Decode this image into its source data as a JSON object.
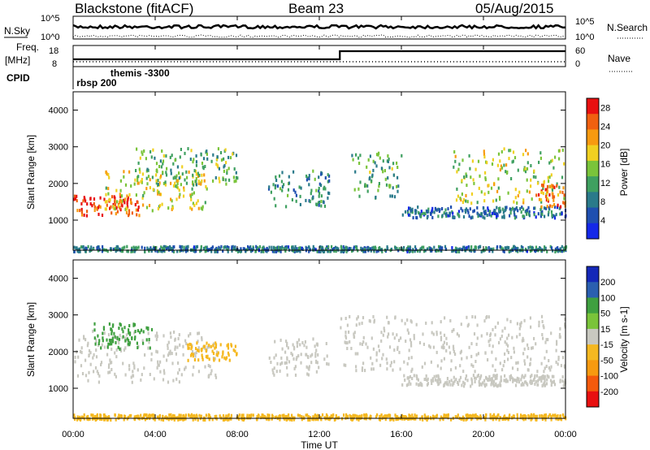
{
  "header": {
    "radar": "Blackstone (fitACF)",
    "beam": "Beam 23",
    "date": "05/Aug/2015"
  },
  "top_panels": {
    "nsky_label": "N.Sky",
    "nsearch_label": "N.Search",
    "freq_label": "Freq.",
    "freq_unit": "[MHz]",
    "nave_label": "Nave",
    "cpid_label": "CPID",
    "left_nsky_ticks": [
      "10^5",
      "10^0"
    ],
    "right_nsky_ticks": [
      "10^5",
      "10^0"
    ],
    "left_freq_ticks": [
      "18",
      "8"
    ],
    "right_nave_ticks": [
      "60",
      "0"
    ],
    "cpid_entries": [
      {
        "text": "rbsp 200",
        "hour": 0.05
      },
      {
        "text": "themis -3300",
        "hour": 1.7
      }
    ]
  },
  "colors": {
    "power": [
      "#1428e8",
      "#1f4fb0",
      "#2a7a8a",
      "#3fa060",
      "#7ac43a",
      "#f0d020",
      "#f79a10",
      "#f06010",
      "#e81010"
    ],
    "velocity": [
      "#e81010",
      "#f45a0c",
      "#f79a10",
      "#f5b820",
      "#c8c8c0",
      "#7ac43a",
      "#3fa040",
      "#2a5fb0",
      "#1428b8"
    ]
  },
  "chart_data": [
    {
      "type": "heatmap",
      "title": "",
      "xlabel": "",
      "ylabel": "Slant Range [km]",
      "x_ticks": [
        "00:00",
        "04:00",
        "08:00",
        "12:00",
        "16:00",
        "20:00",
        "00:00"
      ],
      "y_ticks": [
        "1000",
        "2000",
        "3000",
        "4000"
      ],
      "xlim": [
        0,
        24
      ],
      "ylim": [
        180,
        4500
      ],
      "colorbar_label": "Power [dB]",
      "colorbar_ticks": [
        "4",
        "8",
        "12",
        "16",
        "20",
        "24",
        "28"
      ],
      "colorbar_range": [
        0,
        30
      ],
      "bands": [
        {
          "hours": [
            0,
            3.2
          ],
          "range_km": [
            1150,
            1700
          ],
          "value": 27
        },
        {
          "hours": [
            1.5,
            6.5
          ],
          "range_km": [
            1300,
            2400
          ],
          "value": 18
        },
        {
          "hours": [
            3,
            8
          ],
          "range_km": [
            2000,
            3000
          ],
          "value": 13
        },
        {
          "hours": [
            9.5,
            12.5
          ],
          "range_km": [
            1400,
            2400
          ],
          "value": 9
        },
        {
          "hours": [
            13.5,
            16
          ],
          "range_km": [
            1600,
            2900
          ],
          "value": 12
        },
        {
          "hours": [
            16,
            24
          ],
          "range_km": [
            1100,
            1400
          ],
          "value": 7
        },
        {
          "hours": [
            18.5,
            24
          ],
          "range_km": [
            1500,
            3000
          ],
          "value": 16
        },
        {
          "hours": [
            22.5,
            24
          ],
          "range_km": [
            1400,
            2100
          ],
          "value": 24
        },
        {
          "hours": [
            0,
            24
          ],
          "range_km": [
            180,
            320
          ],
          "value": 8
        }
      ]
    },
    {
      "type": "heatmap",
      "title": "",
      "xlabel": "Time UT",
      "ylabel": "Slant Range [km]",
      "x_ticks": [
        "00:00",
        "04:00",
        "08:00",
        "12:00",
        "16:00",
        "20:00",
        "00:00"
      ],
      "y_ticks": [
        "1000",
        "2000",
        "3000",
        "4000"
      ],
      "xlim": [
        0,
        24
      ],
      "ylim": [
        180,
        4500
      ],
      "colorbar_label": "Velocity [m s-1]",
      "colorbar_ticks": [
        "200",
        "100",
        "50",
        "15",
        "-15",
        "-50",
        "-100",
        "-200"
      ],
      "colorbar_range": [
        -250,
        250
      ],
      "bands": [
        {
          "hours": [
            0,
            7
          ],
          "range_km": [
            1200,
            2600
          ],
          "value": 0
        },
        {
          "hours": [
            1,
            3.8
          ],
          "range_km": [
            2100,
            2800
          ],
          "value": 120
        },
        {
          "hours": [
            5.5,
            8
          ],
          "range_km": [
            1800,
            2300
          ],
          "value": -60
        },
        {
          "hours": [
            9.5,
            12.5
          ],
          "range_km": [
            1400,
            2400
          ],
          "value": 0
        },
        {
          "hours": [
            13,
            24
          ],
          "range_km": [
            1500,
            3000
          ],
          "value": 0
        },
        {
          "hours": [
            16,
            24
          ],
          "range_km": [
            1100,
            1400
          ],
          "value": 0
        },
        {
          "hours": [
            0,
            24
          ],
          "range_km": [
            180,
            320
          ],
          "value": -60
        }
      ]
    }
  ]
}
